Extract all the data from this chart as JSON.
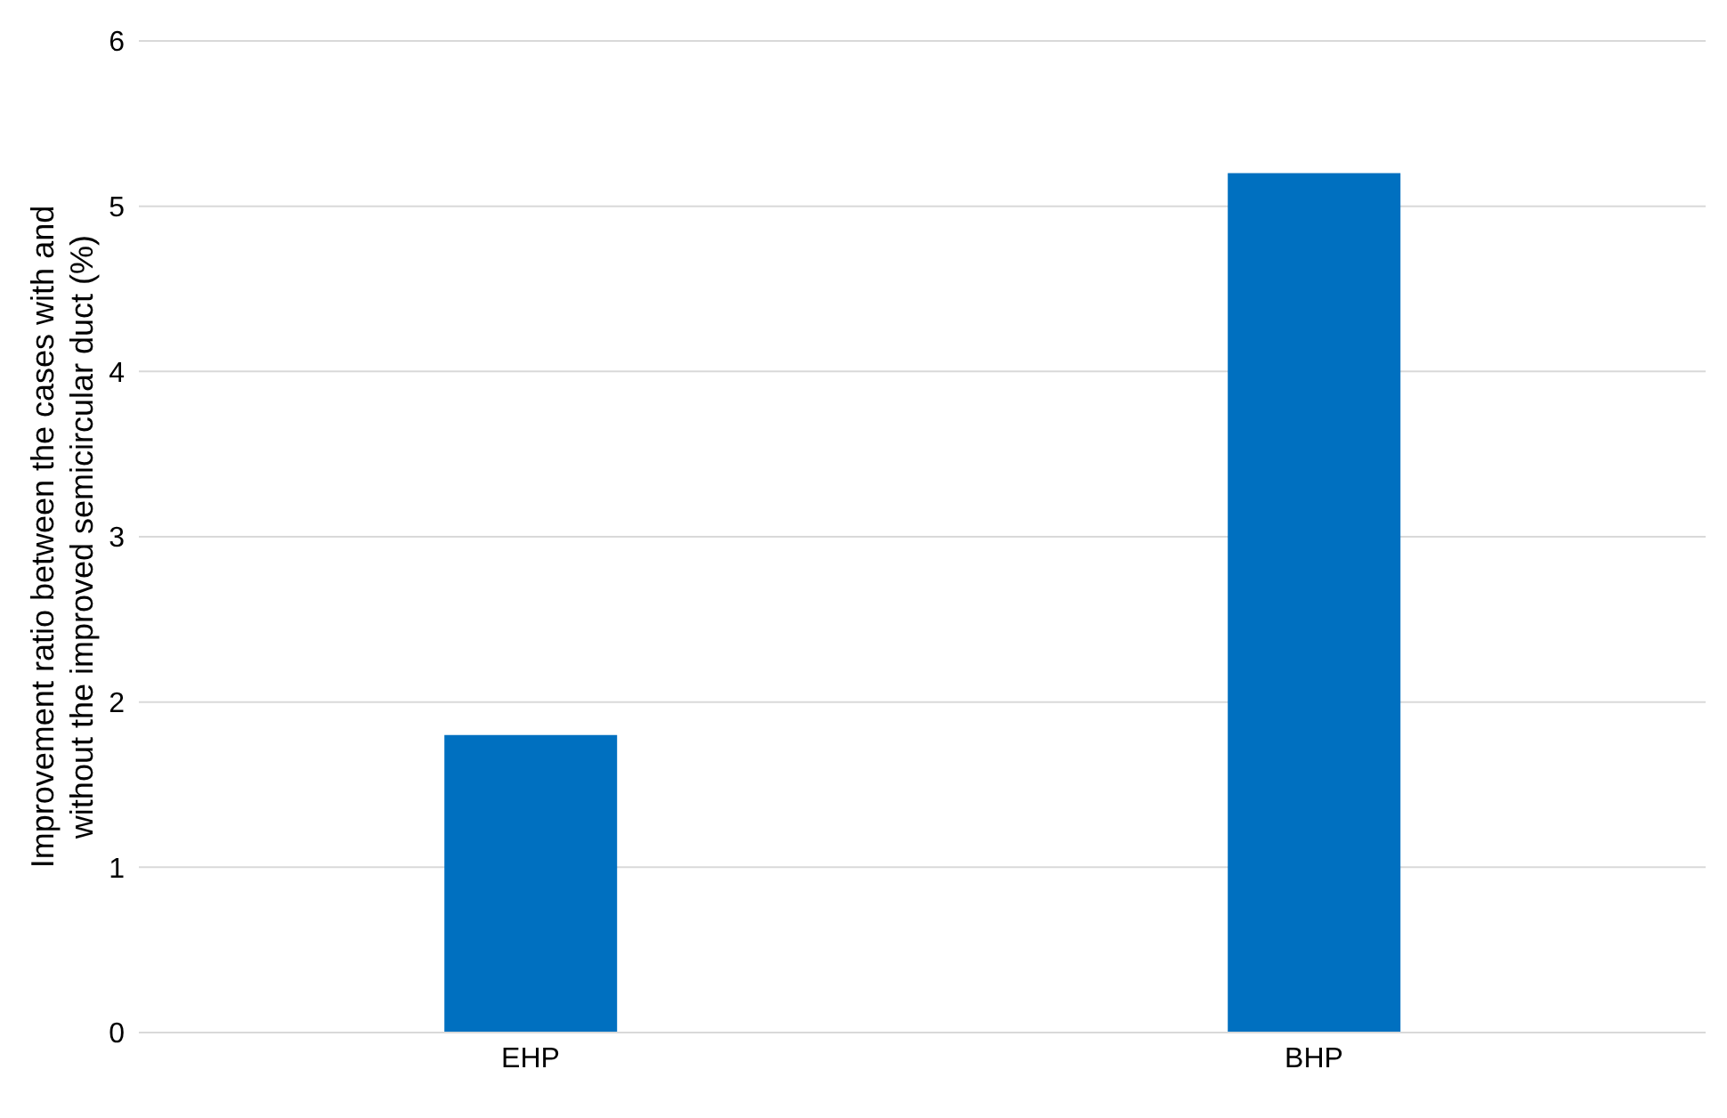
{
  "chart_data": {
    "type": "bar",
    "ylabel": "Improvement ratio between the cases with and without the improved semicircular duct (%)",
    "categories": [
      "EHP",
      "BHP"
    ],
    "values": [
      1.8,
      5.2
    ],
    "color": "#0070c0",
    "ylim": [
      0,
      6
    ],
    "yticks": [
      0,
      1,
      2,
      3,
      4,
      5,
      6
    ],
    "grid": "y"
  }
}
